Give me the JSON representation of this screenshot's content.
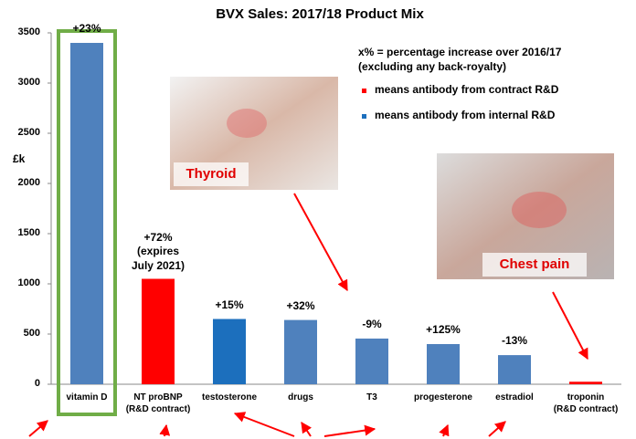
{
  "chart_data": {
    "type": "bar",
    "title": "BVX Sales: 2017/18 Product Mix",
    "y_label": "£k",
    "categories": [
      "vitamin D",
      "NT proBNP\n(R&D contract)",
      "testosterone",
      "drugs",
      "T3",
      "progesterone",
      "estradiol",
      "troponin\n(R&D contract)"
    ],
    "values": [
      3400,
      1050,
      650,
      640,
      455,
      400,
      290,
      25
    ],
    "colors": [
      "#4f81bd",
      "#ff0000",
      "#1c6fbd",
      "#4f81bd",
      "#4f81bd",
      "#4f81bd",
      "#4f81bd",
      "#ff0000"
    ],
    "value_labels": [
      "+23%",
      "+72%\n(expires\nJuly 2021)",
      "+15%",
      "+32%",
      "-9%",
      "+125%",
      "-13%",
      null
    ],
    "ylim": [
      0,
      3500
    ],
    "yticks": [
      0,
      500,
      1000,
      1500,
      2000,
      2500,
      3000,
      3500
    ],
    "grid": false,
    "note": "x% = percentage increase over 2016/17\n(excluding any back-royalty)",
    "legend": [
      {
        "label": "means antibody from contract R&D",
        "color": "#ff0000"
      },
      {
        "label": "means antibody from internal R&D",
        "color": "#1c6fbd"
      }
    ],
    "images": [
      {
        "caption": "Thyroid"
      },
      {
        "caption": "Chest pain"
      }
    ]
  }
}
